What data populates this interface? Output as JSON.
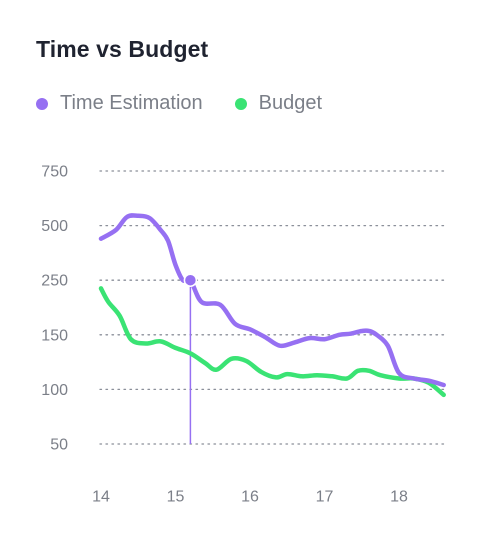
{
  "chart_data": {
    "type": "line",
    "title": "Time vs Budget",
    "xlabel": "",
    "ylabel": "",
    "y_ticks": [
      750,
      500,
      250,
      150,
      100,
      50
    ],
    "x_ticks": [
      14,
      15,
      16,
      17,
      18
    ],
    "xlim": [
      14,
      18.6
    ],
    "grid": "horizontal-dotted",
    "legend_position": "top-left",
    "highlight": {
      "series": "Time Estimation",
      "x": 15.2
    },
    "series": [
      {
        "name": "Time Estimation",
        "color": "#9670f2",
        "points": [
          [
            14.0,
            440
          ],
          [
            14.2,
            480
          ],
          [
            14.35,
            540
          ],
          [
            14.5,
            545
          ],
          [
            14.65,
            535
          ],
          [
            14.8,
            480
          ],
          [
            14.9,
            430
          ],
          [
            15.0,
            320
          ],
          [
            15.1,
            250
          ],
          [
            15.2,
            250
          ],
          [
            15.35,
            210
          ],
          [
            15.6,
            205
          ],
          [
            15.8,
            170
          ],
          [
            16.0,
            160
          ],
          [
            16.2,
            148
          ],
          [
            16.4,
            140
          ],
          [
            16.6,
            143
          ],
          [
            16.8,
            147
          ],
          [
            17.0,
            146
          ],
          [
            17.2,
            150
          ],
          [
            17.35,
            152
          ],
          [
            17.5,
            157
          ],
          [
            17.6,
            157
          ],
          [
            17.7,
            150
          ],
          [
            17.85,
            140
          ],
          [
            18.0,
            115
          ],
          [
            18.2,
            110
          ],
          [
            18.4,
            108
          ],
          [
            18.6,
            104
          ]
        ]
      },
      {
        "name": "Budget",
        "color": "#3ae374",
        "points": [
          [
            14.0,
            235
          ],
          [
            14.1,
            210
          ],
          [
            14.25,
            185
          ],
          [
            14.4,
            146
          ],
          [
            14.6,
            142
          ],
          [
            14.8,
            144
          ],
          [
            15.0,
            138
          ],
          [
            15.2,
            133
          ],
          [
            15.4,
            124
          ],
          [
            15.55,
            118
          ],
          [
            15.75,
            128
          ],
          [
            15.95,
            126
          ],
          [
            16.15,
            116
          ],
          [
            16.35,
            111
          ],
          [
            16.5,
            114
          ],
          [
            16.7,
            112
          ],
          [
            16.9,
            113
          ],
          [
            17.1,
            112
          ],
          [
            17.3,
            110
          ],
          [
            17.45,
            117
          ],
          [
            17.6,
            117
          ],
          [
            17.75,
            113
          ],
          [
            18.0,
            110
          ],
          [
            18.2,
            110
          ],
          [
            18.4,
            106
          ],
          [
            18.6,
            95
          ]
        ]
      }
    ]
  }
}
